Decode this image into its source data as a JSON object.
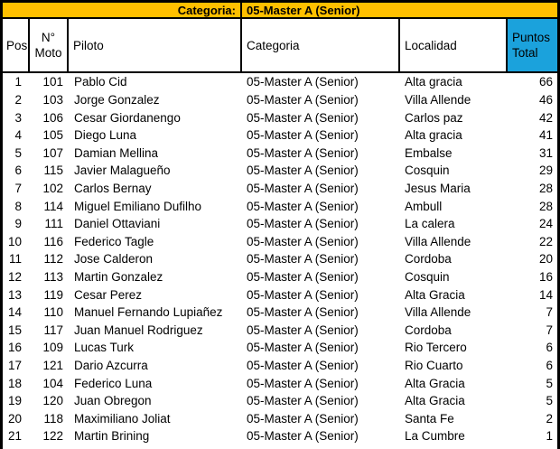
{
  "title_bar": {
    "label": "Categoria:",
    "value": "05-Master A (Senior)"
  },
  "columns": {
    "pos": "Pos",
    "moto": "N° Moto",
    "piloto": "Piloto",
    "categoria": "Categoria",
    "localidad": "Localidad",
    "puntos": "Puntos Total"
  },
  "colors": {
    "title_bg": "#FFC000",
    "points_header_bg": "#1BA2DC",
    "border": "#000000"
  },
  "rows": [
    {
      "pos": "1",
      "moto": "101",
      "piloto": "Pablo Cid",
      "categoria": "05-Master A (Senior)",
      "localidad": "Alta gracia",
      "puntos": "66"
    },
    {
      "pos": "2",
      "moto": "103",
      "piloto": "Jorge Gonzalez",
      "categoria": "05-Master A (Senior)",
      "localidad": "Villa Allende",
      "puntos": "46"
    },
    {
      "pos": "3",
      "moto": "106",
      "piloto": "Cesar Giordanengo",
      "categoria": "05-Master A (Senior)",
      "localidad": "Carlos paz",
      "puntos": "42"
    },
    {
      "pos": "4",
      "moto": "105",
      "piloto": "Diego Luna",
      "categoria": "05-Master A (Senior)",
      "localidad": "Alta gracia",
      "puntos": "41"
    },
    {
      "pos": "5",
      "moto": "107",
      "piloto": "Damian Mellina",
      "categoria": "05-Master A (Senior)",
      "localidad": "Embalse",
      "puntos": "31"
    },
    {
      "pos": "6",
      "moto": "115",
      "piloto": "Javier Malagueño",
      "categoria": "05-Master A (Senior)",
      "localidad": "Cosquin",
      "puntos": "29"
    },
    {
      "pos": "7",
      "moto": "102",
      "piloto": "Carlos Bernay",
      "categoria": "05-Master A (Senior)",
      "localidad": "Jesus Maria",
      "puntos": "28"
    },
    {
      "pos": "8",
      "moto": "114",
      "piloto": "Miguel Emiliano Dufilho",
      "categoria": "05-Master A (Senior)",
      "localidad": "Ambull",
      "puntos": "28"
    },
    {
      "pos": "9",
      "moto": "111",
      "piloto": "Daniel Ottaviani",
      "categoria": "05-Master A (Senior)",
      "localidad": "La calera",
      "puntos": "24"
    },
    {
      "pos": "10",
      "moto": "116",
      "piloto": "Federico Tagle",
      "categoria": "05-Master A (Senior)",
      "localidad": "Villa Allende",
      "puntos": "22"
    },
    {
      "pos": "11",
      "moto": "112",
      "piloto": "Jose Calderon",
      "categoria": "05-Master A (Senior)",
      "localidad": "Cordoba",
      "puntos": "20"
    },
    {
      "pos": "12",
      "moto": "113",
      "piloto": "Martin Gonzalez",
      "categoria": "05-Master A (Senior)",
      "localidad": "Cosquin",
      "puntos": "16"
    },
    {
      "pos": "13",
      "moto": "119",
      "piloto": "Cesar Perez",
      "categoria": "05-Master A (Senior)",
      "localidad": "Alta Gracia",
      "puntos": "14"
    },
    {
      "pos": "14",
      "moto": "110",
      "piloto": "Manuel Fernando Lupiañez",
      "categoria": "05-Master A (Senior)",
      "localidad": "Villa Allende",
      "puntos": "7"
    },
    {
      "pos": "15",
      "moto": "117",
      "piloto": "Juan Manuel Rodriguez",
      "categoria": "05-Master A (Senior)",
      "localidad": "Cordoba",
      "puntos": "7"
    },
    {
      "pos": "16",
      "moto": "109",
      "piloto": "Lucas Turk",
      "categoria": "05-Master A (Senior)",
      "localidad": "Rio Tercero",
      "puntos": "6"
    },
    {
      "pos": "17",
      "moto": "121",
      "piloto": "Dario Azcurra",
      "categoria": "05-Master A (Senior)",
      "localidad": "Rio Cuarto",
      "puntos": "6"
    },
    {
      "pos": "18",
      "moto": "104",
      "piloto": "Federico Luna",
      "categoria": "05-Master A (Senior)",
      "localidad": "Alta Gracia",
      "puntos": "5"
    },
    {
      "pos": "19",
      "moto": "120",
      "piloto": "Juan Obregon",
      "categoria": "05-Master A (Senior)",
      "localidad": "Alta Gracia",
      "puntos": "5"
    },
    {
      "pos": "20",
      "moto": "118",
      "piloto": "Maximiliano Joliat",
      "categoria": "05-Master A (Senior)",
      "localidad": "Santa Fe",
      "puntos": "2"
    },
    {
      "pos": "21",
      "moto": "122",
      "piloto": "Martin Brining",
      "categoria": "05-Master A (Senior)",
      "localidad": "La Cumbre",
      "puntos": "1"
    }
  ]
}
